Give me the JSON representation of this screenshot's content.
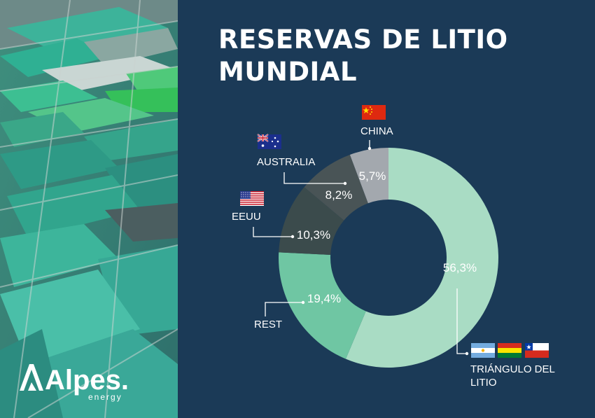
{
  "title": {
    "line1": "RESERVAS DE LITIO",
    "line2": "MUNDIAL"
  },
  "brand": {
    "name": "Alpes.",
    "tagline": "energy"
  },
  "colors": {
    "background": "#1b3a57",
    "text": "#ffffff",
    "triangulo": "#a9dcc4",
    "rest": "#6fc6a3",
    "eeuu": "#3b4b4c",
    "australia": "#495456",
    "china": "#a3a8ae"
  },
  "chart_data": {
    "type": "pie",
    "donut": true,
    "title": "RESERVAS DE LITIO MUNDIAL",
    "categories": [
      "TRIÁNGULO DEL LITIO",
      "REST",
      "EEUU",
      "AUSTRALIA",
      "CHINA"
    ],
    "values": [
      56.3,
      19.4,
      10.3,
      8.2,
      5.7
    ],
    "value_labels": [
      "56,3%",
      "19,4%",
      "10,3%",
      "8,2%",
      "5,7%"
    ],
    "label_lines": [
      [
        "TRIÁNGULO DEL",
        "LITIO"
      ],
      [
        "REST"
      ],
      [
        "EEUU"
      ],
      [
        "AUSTRALIA"
      ],
      [
        "CHINA"
      ]
    ],
    "flags": [
      [
        "argentina-flag",
        "bolivia-flag",
        "chile-flag"
      ],
      [],
      [
        "usa-flag"
      ],
      [
        "australia-flag"
      ],
      [
        "china-flag"
      ]
    ],
    "colors": [
      "#a9dcc4",
      "#6fc6a3",
      "#3b4b4c",
      "#495456",
      "#a3a8ae"
    ],
    "legend": "none"
  }
}
